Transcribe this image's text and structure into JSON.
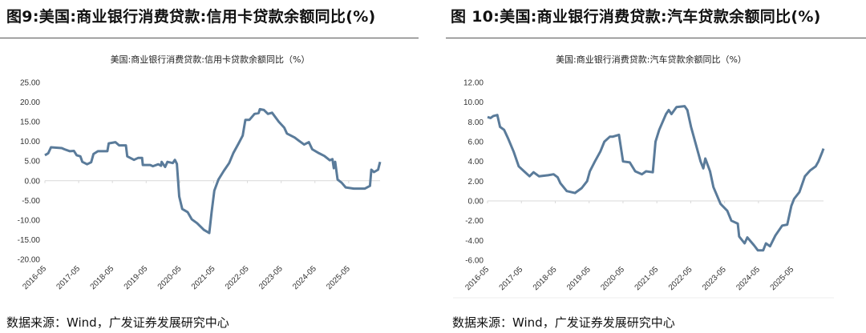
{
  "figures": [
    {
      "title": "图9:美国:商业银行消费贷款:信用卡贷款余额同比(%)",
      "chart_title": "美国:商业银行消费贷款:信用卡贷款余额同比（%）",
      "source": "数据来源：Wind，广发证券发展研究中心"
    },
    {
      "title": "图 10:美国:商业银行消费贷款:汽车贷款余额同比(%)",
      "chart_title": "美国:商业银行消费贷款:汽车贷款余额同比（%）",
      "source": "数据来源：Wind，广发证券发展研究中心"
    }
  ],
  "chart_data": [
    {
      "type": "line",
      "title": "美国:商业银行消费贷款:信用卡贷款余额同比（%）",
      "xlabel": "",
      "ylabel": "%",
      "x_unit": "years since 2016-05",
      "xticks": [
        "2016-05",
        "2017-05",
        "2018-05",
        "2019-05",
        "2020-05",
        "2021-05",
        "2022-05",
        "2023-05",
        "2024-05",
        "2025-05"
      ],
      "yticks": [
        "25.00",
        "20.00",
        "15.00",
        "10.00",
        "5.00",
        "0.00",
        "-5.00",
        "-10.00",
        "-15.00",
        "-20.00"
      ],
      "ylim": [
        -20,
        25
      ],
      "xlim": [
        0,
        9.93
      ],
      "color": "#5a7b9a",
      "points": [
        [
          0,
          6.5
        ],
        [
          0.1,
          7
        ],
        [
          0.18,
          8.5
        ],
        [
          0.5,
          8.3
        ],
        [
          0.58,
          8.0
        ],
        [
          0.74,
          7.5
        ],
        [
          0.86,
          7.6
        ],
        [
          0.94,
          6.5
        ],
        [
          1.05,
          6.2
        ],
        [
          1.11,
          4.8
        ],
        [
          1.25,
          4.2
        ],
        [
          1.37,
          4.7
        ],
        [
          1.44,
          6.8
        ],
        [
          1.57,
          7.5
        ],
        [
          1.85,
          7.5
        ],
        [
          1.89,
          9.5
        ],
        [
          2.09,
          9.8
        ],
        [
          2.2,
          9.0
        ],
        [
          2.4,
          9.0
        ],
        [
          2.44,
          6.2
        ],
        [
          2.64,
          5.3
        ],
        [
          2.76,
          5.8
        ],
        [
          2.88,
          5.8
        ],
        [
          2.9,
          4.0
        ],
        [
          3.12,
          4.0
        ],
        [
          3.2,
          3.7
        ],
        [
          3.36,
          4.2
        ],
        [
          3.44,
          3.8
        ],
        [
          3.46,
          4.8
        ],
        [
          3.56,
          3.5
        ],
        [
          3.63,
          4.8
        ],
        [
          3.79,
          4.5
        ],
        [
          3.85,
          5.3
        ],
        [
          3.91,
          4.3
        ],
        [
          3.98,
          -4.0
        ],
        [
          4.07,
          -7.2
        ],
        [
          4.23,
          -8.0
        ],
        [
          4.35,
          -9.8
        ],
        [
          4.51,
          -10.8
        ],
        [
          4.71,
          -12.5
        ],
        [
          4.87,
          -13.3
        ],
        [
          4.94,
          -8
        ],
        [
          5.02,
          -2.5
        ],
        [
          5.14,
          0.3
        ],
        [
          5.3,
          2.5
        ],
        [
          5.46,
          4.5
        ],
        [
          5.58,
          7.0
        ],
        [
          5.74,
          9.5
        ],
        [
          5.86,
          11.5
        ],
        [
          5.94,
          15.5
        ],
        [
          6.06,
          15.5
        ],
        [
          6.21,
          17
        ],
        [
          6.33,
          17.2
        ],
        [
          6.37,
          18.2
        ],
        [
          6.49,
          18.0
        ],
        [
          6.61,
          17.0
        ],
        [
          6.73,
          17.3
        ],
        [
          6.93,
          15.0
        ],
        [
          7.09,
          13.5
        ],
        [
          7.17,
          12
        ],
        [
          7.4,
          11
        ],
        [
          7.52,
          10.2
        ],
        [
          7.68,
          9.2
        ],
        [
          7.82,
          9.8
        ],
        [
          7.92,
          8.0
        ],
        [
          8.12,
          7.0
        ],
        [
          8.28,
          6.3
        ],
        [
          8.44,
          5.2
        ],
        [
          8.52,
          5.5
        ],
        [
          8.56,
          3.2
        ],
        [
          8.6,
          4.8
        ],
        [
          8.67,
          0.3
        ],
        [
          8.79,
          -0.5
        ],
        [
          8.91,
          -1.7
        ],
        [
          9.15,
          -2.0
        ],
        [
          9.48,
          -2.0
        ],
        [
          9.63,
          -1.3
        ],
        [
          9.67,
          2.8
        ],
        [
          9.75,
          2.2
        ],
        [
          9.87,
          2.8
        ],
        [
          9.93,
          4.8
        ]
      ]
    },
    {
      "type": "line",
      "title": "美国:商业银行消费贷款:汽车贷款余额同比（%）",
      "xlabel": "",
      "ylabel": "%",
      "x_unit": "years since 2016-05",
      "xticks": [
        "2016-05",
        "2017-05",
        "2018-05",
        "2019-05",
        "2020-05",
        "2021-05",
        "2022-05",
        "2023-05",
        "2024-05",
        "2025-05"
      ],
      "yticks": [
        "12.00",
        "10.00",
        "8.00",
        "6.00",
        "4.00",
        "2.00",
        "0.00",
        "-2.00",
        "-4.00",
        "-6.00"
      ],
      "ylim": [
        -6,
        12
      ],
      "xlim": [
        0,
        9.92
      ],
      "color": "#5a7b9a",
      "points": [
        [
          0,
          8.5
        ],
        [
          0.09,
          8.4
        ],
        [
          0.17,
          8.6
        ],
        [
          0.29,
          8.7
        ],
        [
          0.37,
          7.5
        ],
        [
          0.49,
          7.2
        ],
        [
          0.61,
          6.3
        ],
        [
          0.77,
          5.0
        ],
        [
          0.92,
          3.5
        ],
        [
          1.08,
          3.0
        ],
        [
          1.24,
          2.5
        ],
        [
          1.36,
          2.9
        ],
        [
          1.52,
          2.5
        ],
        [
          1.79,
          2.6
        ],
        [
          1.95,
          2.7
        ],
        [
          2.07,
          2.4
        ],
        [
          2.15,
          1.8
        ],
        [
          2.34,
          1.0
        ],
        [
          2.58,
          0.8
        ],
        [
          2.78,
          1.3
        ],
        [
          2.94,
          2.0
        ],
        [
          3.02,
          3.0
        ],
        [
          3.17,
          4.0
        ],
        [
          3.33,
          5.0
        ],
        [
          3.45,
          6.0
        ],
        [
          3.61,
          6.5
        ],
        [
          3.69,
          6.5
        ],
        [
          3.88,
          6.7
        ],
        [
          4.0,
          4.0
        ],
        [
          4.2,
          3.9
        ],
        [
          4.36,
          3.0
        ],
        [
          4.56,
          2.7
        ],
        [
          4.68,
          3.0
        ],
        [
          4.88,
          2.9
        ],
        [
          4.96,
          6.0
        ],
        [
          5.07,
          7.2
        ],
        [
          5.27,
          8.8
        ],
        [
          5.35,
          9.2
        ],
        [
          5.43,
          8.8
        ],
        [
          5.58,
          9.5
        ],
        [
          5.82,
          9.6
        ],
        [
          5.9,
          9.2
        ],
        [
          6.01,
          7.5
        ],
        [
          6.17,
          5.5
        ],
        [
          6.29,
          4.0
        ],
        [
          6.37,
          3.3
        ],
        [
          6.43,
          4.3
        ],
        [
          6.57,
          3.0
        ],
        [
          6.67,
          1.4
        ],
        [
          6.88,
          -0.3
        ],
        [
          7.08,
          -1.0
        ],
        [
          7.2,
          -2.0
        ],
        [
          7.39,
          -2.3
        ],
        [
          7.43,
          -3.6
        ],
        [
          7.59,
          -4.3
        ],
        [
          7.67,
          -3.7
        ],
        [
          7.87,
          -4.5
        ],
        [
          7.98,
          -5.0
        ],
        [
          8.14,
          -5.0
        ],
        [
          8.22,
          -4.3
        ],
        [
          8.34,
          -4.6
        ],
        [
          8.5,
          -3.5
        ],
        [
          8.7,
          -2.5
        ],
        [
          8.85,
          -2.4
        ],
        [
          8.97,
          -0.5
        ],
        [
          9.05,
          0.2
        ],
        [
          9.21,
          0.9
        ],
        [
          9.37,
          2.5
        ],
        [
          9.53,
          3.1
        ],
        [
          9.69,
          3.5
        ],
        [
          9.77,
          4.0
        ],
        [
          9.89,
          5.0
        ],
        [
          9.92,
          5.3
        ]
      ]
    }
  ]
}
